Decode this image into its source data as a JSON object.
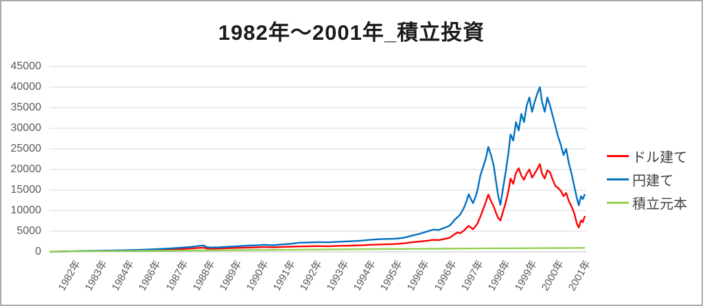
{
  "chart_data": {
    "type": "line",
    "title": "1982年～2001年_積立投資",
    "xlabel": "",
    "ylabel": "",
    "ylim": [
      0,
      45000
    ],
    "y_ticks": [
      0,
      5000,
      10000,
      15000,
      20000,
      25000,
      30000,
      35000,
      40000,
      45000
    ],
    "x_range_years": [
      1982,
      2002
    ],
    "x_tick_labels": [
      "1982年",
      "1983年",
      "1984年",
      "1986年",
      "1987年",
      "1988年",
      "1989年",
      "1990年",
      "1991年",
      "1992年",
      "1993年",
      "1994年",
      "1995年",
      "1996年",
      "1996年",
      "1997年",
      "1998年",
      "1999年",
      "2000年",
      "2001年"
    ],
    "grid": true,
    "legend_position": "right",
    "colors": {
      "grid": "#D9D9D9",
      "axis": "#BFBFBF",
      "tick_text": "#595959",
      "title_text": "#1A1A1A",
      "legend_text": "#404040"
    },
    "series": [
      {
        "id": "usd",
        "name": "ドル建て",
        "color": "#FF0000",
        "points": [
          [
            1982.0,
            25
          ],
          [
            1982.5,
            70
          ],
          [
            1983.0,
            130
          ],
          [
            1983.5,
            180
          ],
          [
            1984.0,
            230
          ],
          [
            1984.5,
            280
          ],
          [
            1985.0,
            340
          ],
          [
            1985.5,
            420
          ],
          [
            1986.0,
            500
          ],
          [
            1986.5,
            600
          ],
          [
            1987.0,
            720
          ],
          [
            1987.3,
            820
          ],
          [
            1987.6,
            950
          ],
          [
            1987.75,
            1020
          ],
          [
            1987.85,
            800
          ],
          [
            1988.0,
            760
          ],
          [
            1988.3,
            800
          ],
          [
            1988.6,
            870
          ],
          [
            1989.0,
            950
          ],
          [
            1989.4,
            1020
          ],
          [
            1989.8,
            1100
          ],
          [
            1990.0,
            1150
          ],
          [
            1990.3,
            1100
          ],
          [
            1990.6,
            1150
          ],
          [
            1991.0,
            1250
          ],
          [
            1991.3,
            1300
          ],
          [
            1991.6,
            1330
          ],
          [
            1992.0,
            1380
          ],
          [
            1992.4,
            1350
          ],
          [
            1992.8,
            1450
          ],
          [
            1993.2,
            1500
          ],
          [
            1993.6,
            1560
          ],
          [
            1994.0,
            1700
          ],
          [
            1994.4,
            1800
          ],
          [
            1994.8,
            1860
          ],
          [
            1995.0,
            1950
          ],
          [
            1995.2,
            2050
          ],
          [
            1995.5,
            2300
          ],
          [
            1995.8,
            2500
          ],
          [
            1996.1,
            2700
          ],
          [
            1996.3,
            2900
          ],
          [
            1996.5,
            2850
          ],
          [
            1996.7,
            3100
          ],
          [
            1996.9,
            3400
          ],
          [
            1997.0,
            3800
          ],
          [
            1997.1,
            4300
          ],
          [
            1997.2,
            4700
          ],
          [
            1997.3,
            4500
          ],
          [
            1997.45,
            5200
          ],
          [
            1997.55,
            5900
          ],
          [
            1997.62,
            6300
          ],
          [
            1997.7,
            5900
          ],
          [
            1997.78,
            5500
          ],
          [
            1997.88,
            6300
          ],
          [
            1997.95,
            6900
          ],
          [
            1998.05,
            8500
          ],
          [
            1998.15,
            10200
          ],
          [
            1998.25,
            12000
          ],
          [
            1998.35,
            13900
          ],
          [
            1998.45,
            12300
          ],
          [
            1998.55,
            11000
          ],
          [
            1998.65,
            9200
          ],
          [
            1998.72,
            8200
          ],
          [
            1998.8,
            7600
          ],
          [
            1998.9,
            9800
          ],
          [
            1999.0,
            12000
          ],
          [
            1999.1,
            14800
          ],
          [
            1999.18,
            17800
          ],
          [
            1999.28,
            16500
          ],
          [
            1999.38,
            19200
          ],
          [
            1999.48,
            20300
          ],
          [
            1999.58,
            18500
          ],
          [
            1999.68,
            17500
          ],
          [
            1999.78,
            19000
          ],
          [
            1999.88,
            20000
          ],
          [
            1999.98,
            18000
          ],
          [
            2000.08,
            19000
          ],
          [
            2000.18,
            20200
          ],
          [
            2000.27,
            21300
          ],
          [
            2000.35,
            19000
          ],
          [
            2000.45,
            17800
          ],
          [
            2000.55,
            19800
          ],
          [
            2000.65,
            19300
          ],
          [
            2000.75,
            17500
          ],
          [
            2000.85,
            16000
          ],
          [
            2000.95,
            15500
          ],
          [
            2001.05,
            14800
          ],
          [
            2001.15,
            13500
          ],
          [
            2001.25,
            14300
          ],
          [
            2001.35,
            12300
          ],
          [
            2001.45,
            11000
          ],
          [
            2001.55,
            9400
          ],
          [
            2001.65,
            6800
          ],
          [
            2001.72,
            5900
          ],
          [
            2001.8,
            7600
          ],
          [
            2001.87,
            7200
          ],
          [
            2001.95,
            8700
          ]
        ]
      },
      {
        "id": "jpy",
        "name": "円建て",
        "color": "#0070C0",
        "points": [
          [
            1982.0,
            30
          ],
          [
            1982.5,
            80
          ],
          [
            1983.0,
            150
          ],
          [
            1983.5,
            220
          ],
          [
            1984.0,
            280
          ],
          [
            1984.5,
            340
          ],
          [
            1985.0,
            420
          ],
          [
            1985.5,
            520
          ],
          [
            1986.0,
            650
          ],
          [
            1986.5,
            820
          ],
          [
            1987.0,
            1050
          ],
          [
            1987.3,
            1200
          ],
          [
            1987.6,
            1450
          ],
          [
            1987.75,
            1550
          ],
          [
            1987.85,
            1150
          ],
          [
            1988.0,
            1050
          ],
          [
            1988.3,
            1100
          ],
          [
            1988.6,
            1200
          ],
          [
            1989.0,
            1350
          ],
          [
            1989.4,
            1500
          ],
          [
            1989.8,
            1600
          ],
          [
            1990.0,
            1700
          ],
          [
            1990.3,
            1600
          ],
          [
            1990.6,
            1750
          ],
          [
            1991.0,
            1950
          ],
          [
            1991.3,
            2200
          ],
          [
            1991.6,
            2250
          ],
          [
            1992.0,
            2350
          ],
          [
            1992.4,
            2300
          ],
          [
            1992.8,
            2450
          ],
          [
            1993.2,
            2550
          ],
          [
            1993.6,
            2700
          ],
          [
            1994.0,
            2950
          ],
          [
            1994.4,
            3100
          ],
          [
            1994.8,
            3150
          ],
          [
            1995.0,
            3250
          ],
          [
            1995.2,
            3400
          ],
          [
            1995.5,
            3900
          ],
          [
            1995.8,
            4400
          ],
          [
            1996.1,
            5000
          ],
          [
            1996.3,
            5400
          ],
          [
            1996.5,
            5300
          ],
          [
            1996.7,
            5800
          ],
          [
            1996.9,
            6300
          ],
          [
            1997.0,
            7000
          ],
          [
            1997.1,
            7800
          ],
          [
            1997.2,
            8400
          ],
          [
            1997.3,
            9000
          ],
          [
            1997.45,
            10800
          ],
          [
            1997.55,
            12500
          ],
          [
            1997.62,
            14000
          ],
          [
            1997.7,
            12800
          ],
          [
            1997.78,
            11800
          ],
          [
            1997.88,
            13500
          ],
          [
            1997.95,
            15000
          ],
          [
            1998.05,
            18500
          ],
          [
            1998.15,
            20500
          ],
          [
            1998.25,
            22500
          ],
          [
            1998.35,
            25500
          ],
          [
            1998.45,
            23500
          ],
          [
            1998.55,
            21000
          ],
          [
            1998.65,
            16500
          ],
          [
            1998.72,
            13500
          ],
          [
            1998.8,
            11400
          ],
          [
            1998.9,
            15500
          ],
          [
            1999.0,
            19500
          ],
          [
            1999.1,
            24000
          ],
          [
            1999.18,
            28500
          ],
          [
            1999.28,
            27000
          ],
          [
            1999.38,
            31500
          ],
          [
            1999.48,
            29500
          ],
          [
            1999.58,
            33500
          ],
          [
            1999.68,
            31500
          ],
          [
            1999.78,
            35500
          ],
          [
            1999.88,
            37500
          ],
          [
            1999.98,
            34000
          ],
          [
            2000.08,
            36500
          ],
          [
            2000.18,
            38500
          ],
          [
            2000.27,
            40000
          ],
          [
            2000.35,
            36500
          ],
          [
            2000.45,
            34000
          ],
          [
            2000.55,
            37500
          ],
          [
            2000.65,
            35500
          ],
          [
            2000.75,
            33000
          ],
          [
            2000.85,
            30500
          ],
          [
            2000.95,
            28000
          ],
          [
            2001.05,
            26000
          ],
          [
            2001.15,
            23500
          ],
          [
            2001.25,
            25000
          ],
          [
            2001.35,
            21500
          ],
          [
            2001.45,
            19000
          ],
          [
            2001.55,
            16000
          ],
          [
            2001.65,
            13000
          ],
          [
            2001.72,
            11300
          ],
          [
            2001.8,
            13500
          ],
          [
            2001.87,
            12800
          ],
          [
            2001.95,
            14000
          ]
        ]
      },
      {
        "id": "principal",
        "name": "積立元本",
        "color": "#92D050",
        "points": [
          [
            1982.0,
            50
          ],
          [
            1984.0,
            150
          ],
          [
            1986.0,
            250
          ],
          [
            1988.0,
            350
          ],
          [
            1990.0,
            450
          ],
          [
            1992.0,
            550
          ],
          [
            1994.0,
            650
          ],
          [
            1996.0,
            740
          ],
          [
            1998.0,
            820
          ],
          [
            2000.0,
            890
          ],
          [
            2001.95,
            950
          ]
        ]
      }
    ]
  }
}
